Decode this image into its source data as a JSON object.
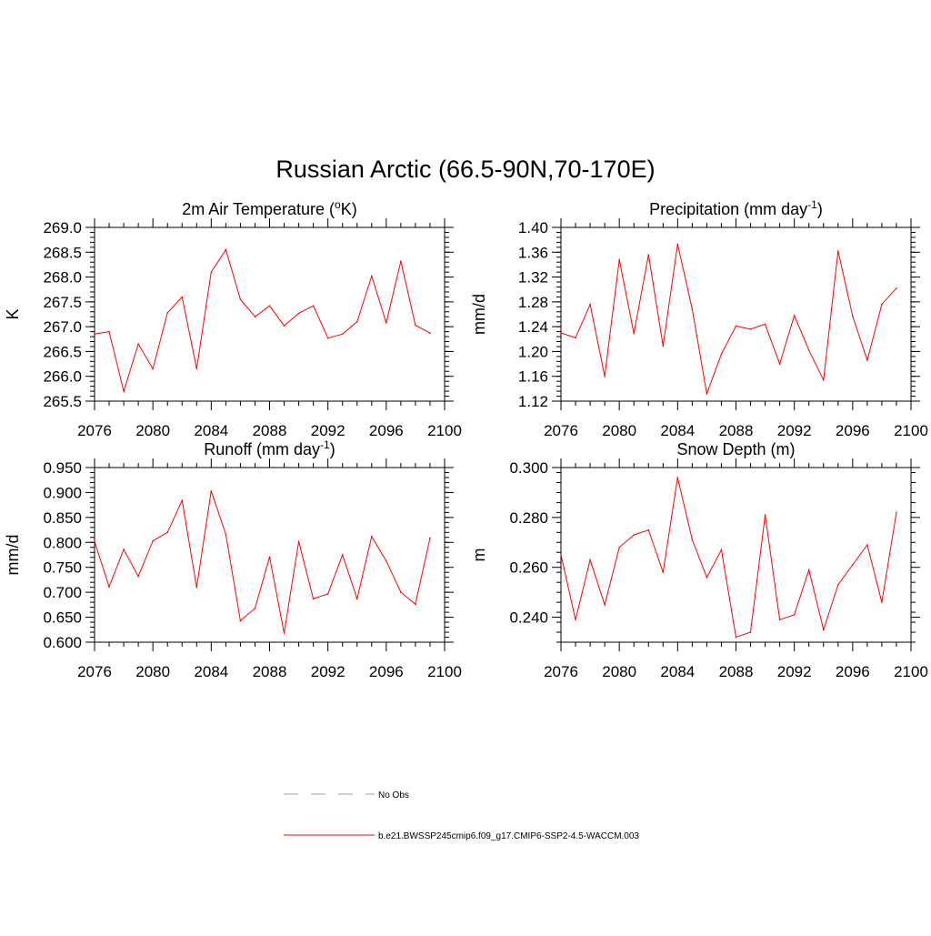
{
  "title": "Russian Arctic (66.5-90N,70-170E)",
  "colors": {
    "series": "#ff0000",
    "obs": "#9999dd",
    "axis": "#000000"
  },
  "legend": {
    "obs_label": "No Obs",
    "series_label": "b.e21.BWSSP245cmip6.f09_g17.CMIP6-SSP2-4.5-WACCM.003"
  },
  "chart_data": [
    {
      "type": "line",
      "title": "2m Air Temperature (",
      "title_sup": "o",
      "title_post": "K)",
      "ylabel": "K",
      "xlim": [
        2076,
        2100
      ],
      "ylim": [
        265.5,
        269.0
      ],
      "xticks": [
        2076,
        2080,
        2084,
        2088,
        2092,
        2096,
        2100
      ],
      "yticks": [
        "265.5",
        "266.0",
        "266.5",
        "267.0",
        "267.5",
        "268.0",
        "268.5",
        "269.0"
      ],
      "x": [
        2076,
        2077,
        2078,
        2079,
        2080,
        2081,
        2082,
        2083,
        2084,
        2085,
        2086,
        2087,
        2088,
        2089,
        2090,
        2091,
        2092,
        2093,
        2094,
        2095,
        2096,
        2097,
        2098,
        2099
      ],
      "values": [
        266.85,
        266.9,
        265.7,
        266.65,
        266.15,
        267.28,
        267.6,
        266.15,
        268.1,
        268.55,
        267.55,
        267.2,
        267.42,
        267.02,
        267.27,
        267.42,
        266.77,
        266.85,
        267.1,
        268.02,
        267.08,
        268.32,
        267.03,
        266.87
      ]
    },
    {
      "type": "line",
      "title": "Precipitation (mm day",
      "title_sup": "-1",
      "title_post": ")",
      "ylabel": "mm/d",
      "xlim": [
        2076,
        2100
      ],
      "ylim": [
        1.12,
        1.4
      ],
      "xticks": [
        2076,
        2080,
        2084,
        2088,
        2092,
        2096,
        2100
      ],
      "yticks": [
        "1.12",
        "1.16",
        "1.20",
        "1.24",
        "1.28",
        "1.32",
        "1.36",
        "1.40"
      ],
      "x": [
        2076,
        2077,
        2078,
        2079,
        2080,
        2081,
        2082,
        2083,
        2084,
        2085,
        2086,
        2087,
        2088,
        2089,
        2090,
        2091,
        2092,
        2093,
        2094,
        2095,
        2096,
        2097,
        2098,
        2099
      ],
      "values": [
        1.23,
        1.222,
        1.276,
        1.16,
        1.348,
        1.229,
        1.356,
        1.209,
        1.373,
        1.268,
        1.132,
        1.196,
        1.241,
        1.236,
        1.244,
        1.18,
        1.258,
        1.202,
        1.154,
        1.362,
        1.257,
        1.186,
        1.276,
        1.302
      ]
    },
    {
      "type": "line",
      "title": "Runoff (mm day",
      "title_sup": "-1",
      "title_post": ")",
      "ylabel": "mm/d",
      "xlim": [
        2076,
        2100
      ],
      "ylim": [
        0.6,
        0.95
      ],
      "xticks": [
        2076,
        2080,
        2084,
        2088,
        2092,
        2096,
        2100
      ],
      "yticks": [
        "0.600",
        "0.650",
        "0.700",
        "0.750",
        "0.800",
        "0.850",
        "0.900",
        "0.950"
      ],
      "x": [
        2076,
        2077,
        2078,
        2079,
        2080,
        2081,
        2082,
        2083,
        2084,
        2085,
        2086,
        2087,
        2088,
        2089,
        2090,
        2091,
        2092,
        2093,
        2094,
        2095,
        2096,
        2097,
        2098,
        2099
      ],
      "values": [
        0.802,
        0.711,
        0.786,
        0.732,
        0.803,
        0.82,
        0.884,
        0.71,
        0.903,
        0.816,
        0.643,
        0.668,
        0.771,
        0.618,
        0.802,
        0.687,
        0.697,
        0.775,
        0.687,
        0.812,
        0.763,
        0.7,
        0.676,
        0.809
      ]
    },
    {
      "type": "line",
      "title": "Snow Depth (m)",
      "title_sup": "",
      "title_post": "",
      "ylabel": "m",
      "xlim": [
        2076,
        2100
      ],
      "ylim": [
        0.23,
        0.3
      ],
      "xticks": [
        2076,
        2080,
        2084,
        2088,
        2092,
        2096,
        2100
      ],
      "yticks": [
        "0.240",
        "0.260",
        "0.280",
        "0.300"
      ],
      "x": [
        2076,
        2077,
        2078,
        2079,
        2080,
        2081,
        2082,
        2083,
        2084,
        2085,
        2086,
        2087,
        2088,
        2089,
        2090,
        2091,
        2092,
        2093,
        2094,
        2095,
        2096,
        2097,
        2098,
        2099
      ],
      "values": [
        0.265,
        0.239,
        0.263,
        0.245,
        0.268,
        0.273,
        0.275,
        0.258,
        0.296,
        0.271,
        0.256,
        0.267,
        0.232,
        0.234,
        0.281,
        0.239,
        0.241,
        0.259,
        0.235,
        0.253,
        0.261,
        0.269,
        0.246,
        0.282
      ]
    }
  ]
}
